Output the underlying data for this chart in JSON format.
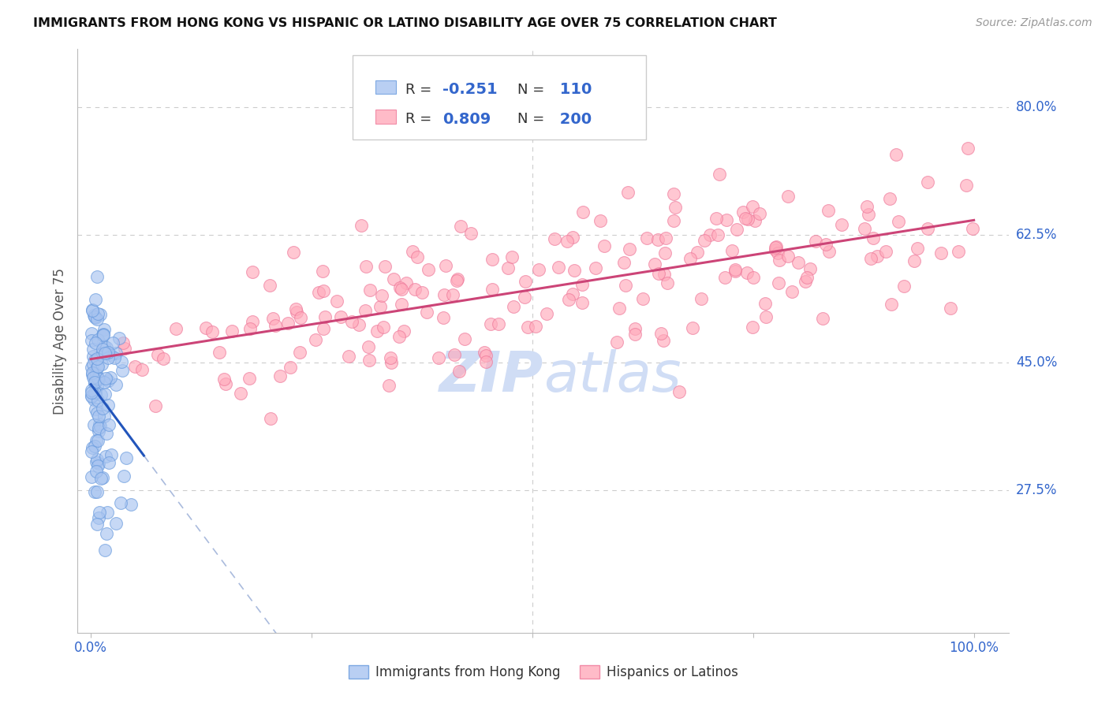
{
  "title": "IMMIGRANTS FROM HONG KONG VS HISPANIC OR LATINO DISABILITY AGE OVER 75 CORRELATION CHART",
  "source": "Source: ZipAtlas.com",
  "ylabel": "Disability Age Over 75",
  "legend_labels": [
    "Immigrants from Hong Kong",
    "Hispanics or Latinos"
  ],
  "blue_r": "-0.251",
  "blue_n": "110",
  "pink_r": "0.809",
  "pink_n": "200",
  "blue_color": "#a8c4f0",
  "blue_edge_color": "#6699dd",
  "pink_color": "#ffaabb",
  "pink_edge_color": "#ee7799",
  "blue_line_color": "#2255bb",
  "pink_line_color": "#cc4477",
  "dashed_line_color": "#aabbdd",
  "title_color": "#111111",
  "source_color": "#999999",
  "tick_label_color": "#3366cc",
  "watermark_color": "#d0ddf5",
  "background_color": "#ffffff",
  "grid_color": "#cccccc",
  "y_ticks": [
    0.275,
    0.45,
    0.625,
    0.8
  ],
  "y_tick_labels": [
    "27.5%",
    "45.0%",
    "62.5%",
    "80.0%"
  ],
  "x_tick_labels": [
    "0.0%",
    "100.0%"
  ],
  "ylim": [
    0.08,
    0.88
  ],
  "xlim": [
    -0.015,
    1.04
  ]
}
